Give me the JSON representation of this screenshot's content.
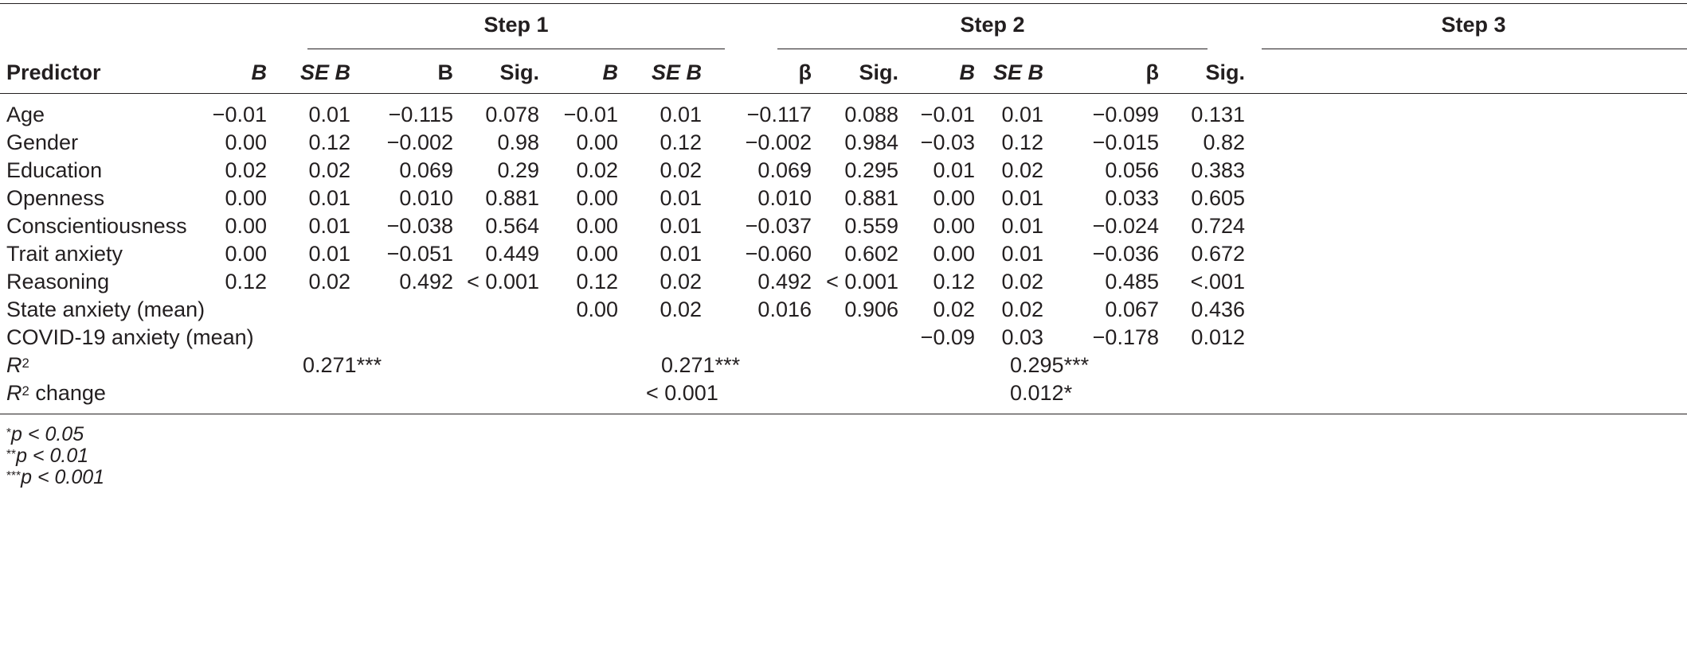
{
  "steps": [
    "Step 1",
    "Step 2",
    "Step 3"
  ],
  "header": {
    "predictor": "Predictor",
    "cols": [
      "B",
      "SE B",
      "Β",
      "Sig.",
      "B",
      "SE B",
      "β",
      "Sig.",
      "B",
      "SE B",
      "β",
      "Sig."
    ]
  },
  "rows": [
    {
      "label": "Age",
      "cells": [
        "−0.01",
        "0.01",
        "−0.115",
        "0.078",
        "−0.01",
        "0.01",
        "−0.117",
        "0.088",
        "−0.01",
        "0.01",
        "−0.099",
        "0.131"
      ]
    },
    {
      "label": "Gender",
      "cells": [
        "0.00",
        "0.12",
        "−0.002",
        "0.98",
        "0.00",
        "0.12",
        "−0.002",
        "0.984",
        "−0.03",
        "0.12",
        "−0.015",
        "0.82"
      ]
    },
    {
      "label": "Education",
      "cells": [
        "0.02",
        "0.02",
        "0.069",
        "0.29",
        "0.02",
        "0.02",
        "0.069",
        "0.295",
        "0.01",
        "0.02",
        "0.056",
        "0.383"
      ]
    },
    {
      "label": "Openness",
      "cells": [
        "0.00",
        "0.01",
        "0.010",
        "0.881",
        "0.00",
        "0.01",
        "0.010",
        "0.881",
        "0.00",
        "0.01",
        "0.033",
        "0.605"
      ]
    },
    {
      "label": "Conscientiousness",
      "cells": [
        "0.00",
        "0.01",
        "−0.038",
        "0.564",
        "0.00",
        "0.01",
        "−0.037",
        "0.559",
        "0.00",
        "0.01",
        "−0.024",
        "0.724"
      ]
    },
    {
      "label": "Trait anxiety",
      "cells": [
        "0.00",
        "0.01",
        "−0.051",
        "0.449",
        "0.00",
        "0.01",
        "−0.060",
        "0.602",
        "0.00",
        "0.01",
        "−0.036",
        "0.672"
      ]
    },
    {
      "label": "Reasoning",
      "cells": [
        "0.12",
        "0.02",
        "0.492",
        "< 0.001",
        "0.12",
        "0.02",
        "0.492",
        "< 0.001",
        "0.12",
        "0.02",
        "0.485",
        "<.001"
      ]
    },
    {
      "label": "State anxiety (mean)",
      "cells": [
        "",
        "",
        "",
        "",
        "0.00",
        "0.02",
        "0.016",
        "0.906",
        "0.02",
        "0.02",
        "0.067",
        "0.436"
      ]
    },
    {
      "label": "COVID-19 anxiety (mean)",
      "cells": [
        "",
        "",
        "",
        "",
        "",
        "",
        "",
        "",
        "−0.09",
        "0.03",
        "−0.178",
        "0.012"
      ]
    }
  ],
  "summary": {
    "r2": {
      "label_main": "R",
      "label_sup": "2",
      "label_rest": "",
      "values": [
        "0.271***",
        "0.271***",
        "0.295***"
      ]
    },
    "r2change": {
      "label_main": "R",
      "label_sup": "2",
      "label_rest": " change",
      "values": [
        "",
        "< 0.001",
        "0.012*"
      ]
    }
  },
  "footnotes": [
    {
      "stars": "*",
      "text": "p < 0.05"
    },
    {
      "stars": "**",
      "text": "p < 0.01"
    },
    {
      "stars": "***",
      "text": "p < 0.001"
    }
  ]
}
